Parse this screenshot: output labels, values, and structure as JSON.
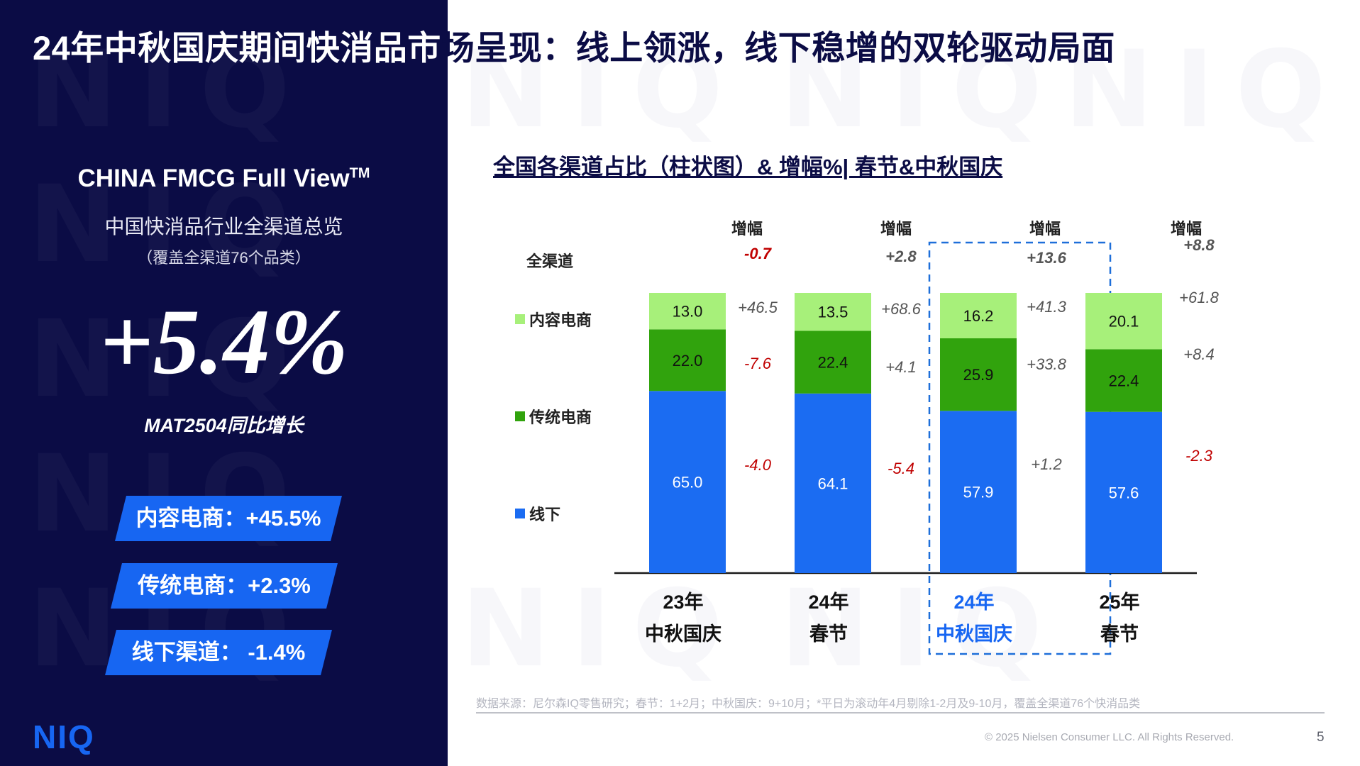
{
  "title": {
    "part1": "24年中秋国庆期间快消品市",
    "part2": "场呈现：线上领涨，线下稳增的双轮驱动局面"
  },
  "left_panel": {
    "brand_title": "CHINA FMCG Full View",
    "brand_tm": "TM",
    "subtitle": "中国快消品行业全渠道总览",
    "note": "（覆盖全渠道76个品类）",
    "headline_value": "+5.4%",
    "headline_label": "MAT2504同比增长",
    "pills": [
      {
        "label": "内容电商：+45.5%"
      },
      {
        "label": "传统电商：+2.3%"
      },
      {
        "label": "线下渠道：  -1.4%"
      }
    ],
    "logo": "NIQ"
  },
  "watermark": "NIQ",
  "chart_data": {
    "type": "bar",
    "stacked": true,
    "title": "全国各渠道占比（柱状图）& 增幅%| 春节&中秋国庆",
    "categories": [
      {
        "line1": "23年",
        "line2": "中秋国庆"
      },
      {
        "line1": "24年",
        "line2": "春节"
      },
      {
        "line1": "24年",
        "line2": "中秋国庆"
      },
      {
        "line1": "25年",
        "line2": "春节"
      }
    ],
    "highlight_index": 2,
    "series": [
      {
        "name": "线下",
        "color": "#1b6cf2",
        "values": [
          65.0,
          64.1,
          57.9,
          57.6
        ],
        "labels": [
          "65.0",
          "64.1",
          "57.9",
          "57.6"
        ],
        "growth": [
          "-4.0",
          "-5.4",
          "+1.2",
          "-2.3"
        ]
      },
      {
        "name": "传统电商",
        "color": "#31a30d",
        "values": [
          22.0,
          22.4,
          25.9,
          22.4
        ],
        "labels": [
          "22.0",
          "22.4",
          "25.9",
          "22.4"
        ],
        "growth": [
          "-7.6",
          "+4.1",
          "+33.8",
          "+8.4"
        ]
      },
      {
        "name": "内容电商",
        "color": "#a7f07a",
        "values": [
          13.0,
          13.5,
          16.2,
          20.1
        ],
        "labels": [
          "13.0",
          "13.5",
          "16.2",
          "20.1"
        ],
        "growth": [
          "+46.5",
          "+68.6",
          "+41.3",
          "+61.8"
        ]
      }
    ],
    "total": {
      "name": "全渠道",
      "growth": [
        "-0.7",
        "+2.8",
        "+13.6",
        "+8.8"
      ]
    },
    "growth_header": "增幅",
    "ylim": [
      0,
      100
    ],
    "colors": {
      "negative": "#c00000",
      "positive": "#555555",
      "highlight": "#1766f2",
      "text": "#0b0c45"
    }
  },
  "footer": {
    "source": "数据来源：尼尔森IQ零售研究；春节：1+2月；中秋国庆：9+10月；*平日为滚动年4月剔除1-2月及9-10月，覆盖全渠道76个快消品类",
    "copyright": "© 2025 Nielsen Consumer LLC. All Rights Reserved.",
    "page": "5"
  }
}
